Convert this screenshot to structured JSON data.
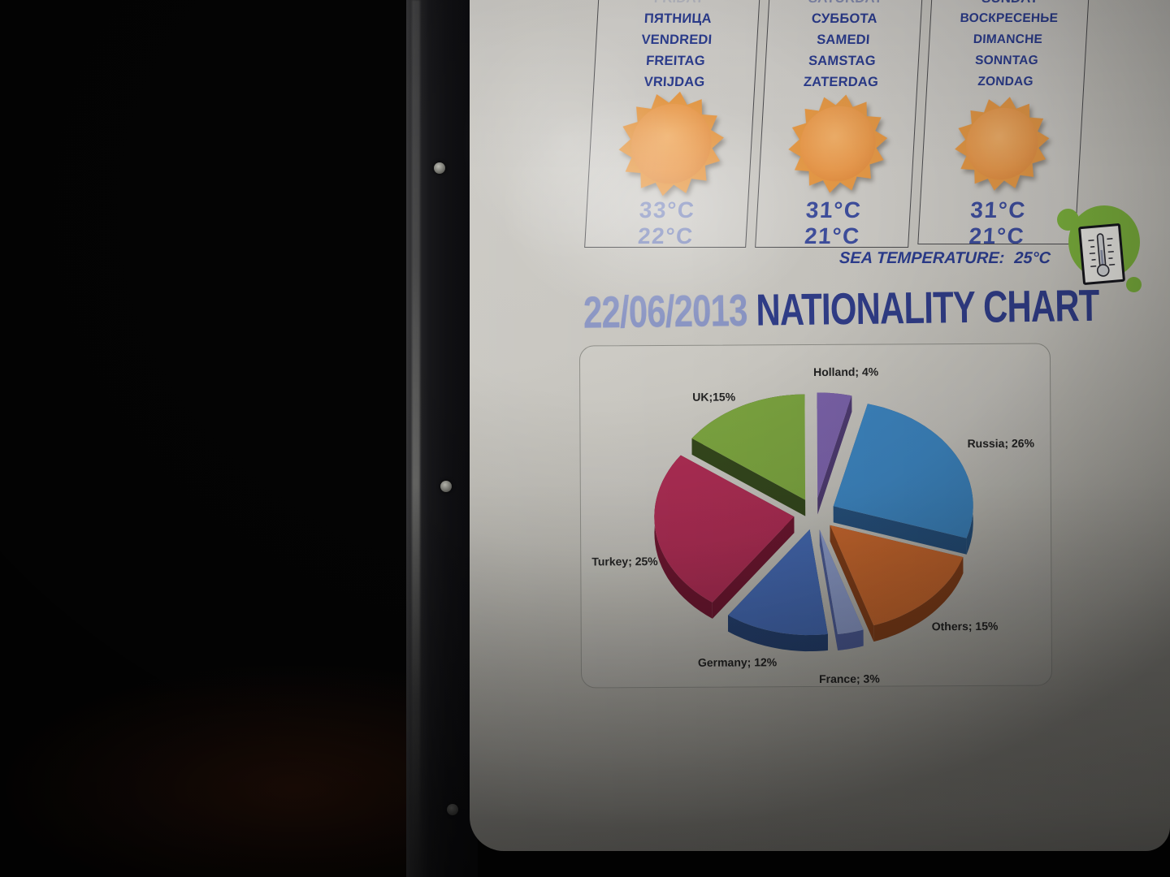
{
  "title": {
    "date": "22/06/2013",
    "text": "NATIONALITY CHART"
  },
  "weather": {
    "days": [
      {
        "day_en": "FRIDAY",
        "day_ru": "ПЯТНИЦА",
        "day_fr": "VENDREDI",
        "day_de": "FREITAG",
        "day_nl": "VRIJDAG",
        "icon": "sun-icon",
        "temp_high": "33°C",
        "temp_low": "22°C"
      },
      {
        "day_en": "SATURDAY",
        "day_ru": "СУББОТА",
        "day_fr": "SAMEDI",
        "day_de": "SAMSTAG",
        "day_nl": "ZATERDAG",
        "icon": "sun-icon",
        "temp_high": "31°C",
        "temp_low": "21°C"
      },
      {
        "day_en": "SUNDAY",
        "day_ru": "ВОСКРЕСЕНЬЕ",
        "day_fr": "DIMANCHE",
        "day_de": "SONNTAG",
        "day_nl": "ZONDAG",
        "icon": "sun-icon",
        "temp_high": "31°C",
        "temp_low": "21°C"
      }
    ],
    "sea_temperature_label": "SEA TEMPERATURE:",
    "sea_temperature_value": "25°C"
  },
  "chart_data": {
    "type": "pie",
    "title": "22/06/2013 NATIONALITY CHART",
    "style": "3d-exploded",
    "direction": "clockwise",
    "start_angle_deg": 0,
    "legend_position": "data-labels",
    "series": [
      {
        "name": "Holland",
        "value": 4,
        "label": "Holland; 4%",
        "color": "#7a62a8",
        "side": "#4e3b70"
      },
      {
        "name": "Russia",
        "value": 26,
        "label": "Russia; 26%",
        "color": "#3d85c0",
        "side": "#26507c"
      },
      {
        "name": "Others",
        "value": 15,
        "label": "Others; 15%",
        "color": "#c9682e",
        "side": "#833f1a"
      },
      {
        "name": "France",
        "value": 3,
        "label": "France; 3%",
        "color": "#8c9bc9",
        "side": "#4d5c96"
      },
      {
        "name": "Germany",
        "value": 12,
        "label": "Germany; 12%",
        "color": "#4468b0",
        "side": "#25406e"
      },
      {
        "name": "Turkey",
        "value": 25,
        "label": "Turkey; 25%",
        "color": "#a92c52",
        "side": "#6b162f"
      },
      {
        "name": "UK",
        "value": 15,
        "label": "UK;15%",
        "color": "#7aa23f",
        "side": "#33461c"
      }
    ]
  },
  "icons": {
    "sun": "sun-icon",
    "thermometer": "thermometer-icon",
    "screw": "screw-icon"
  },
  "colors": {
    "day_text": "#2c3d8f",
    "temp_text": "#3e4e9e",
    "title_date": "#8a95c3",
    "title_main": "#303d88",
    "pie_label_text": "#222222",
    "badge_green": "#7eb43e",
    "paper": "#c8c6c0"
  }
}
